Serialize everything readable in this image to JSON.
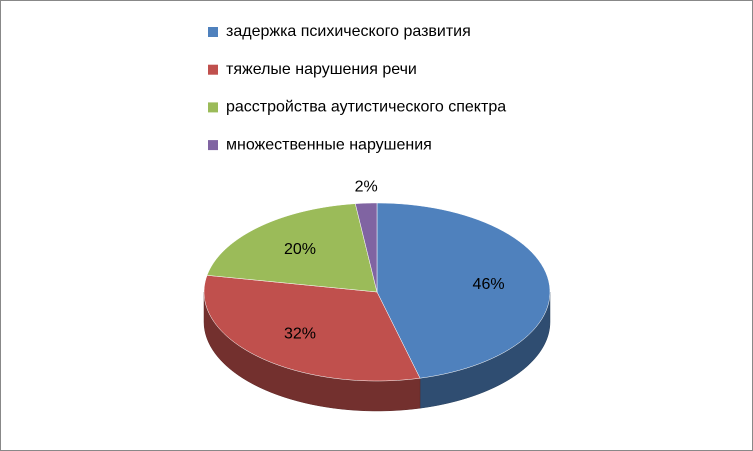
{
  "chart_data": {
    "type": "pie",
    "categories": [
      "задержка психического развития",
      "тяжелые нарушения речи",
      "расстройства аутистического спектра",
      "множественные нарушения"
    ],
    "values": [
      46,
      32,
      20,
      2
    ],
    "value_labels": [
      "46%",
      "32%",
      "20%",
      "2%"
    ],
    "colors": [
      "#4f81bd",
      "#c0504d",
      "#9bbb59",
      "#8064a2"
    ],
    "legend": "top"
  }
}
